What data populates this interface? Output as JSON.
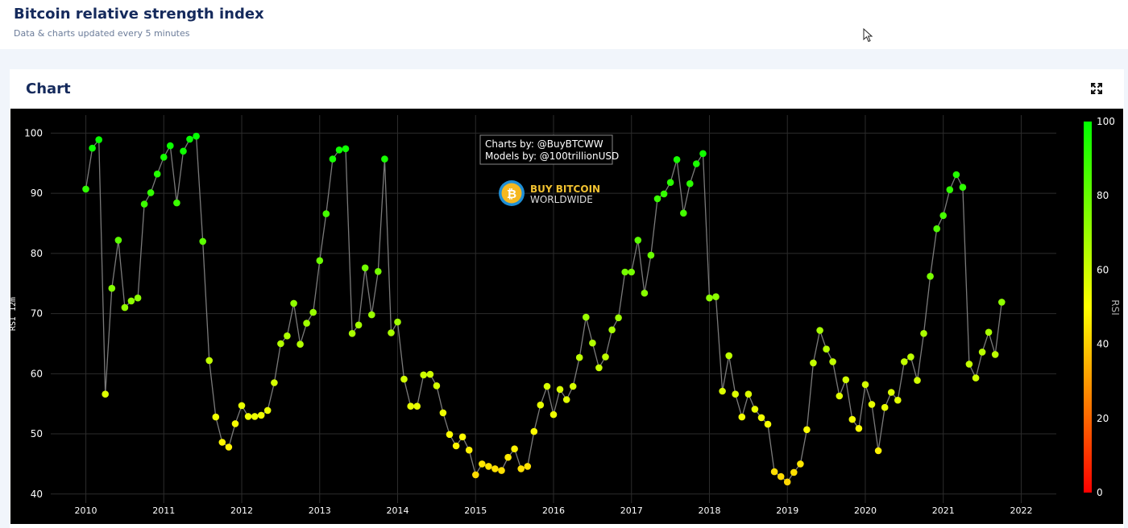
{
  "header": {
    "title": "Bitcoin relative strength index",
    "subtitle": "Data & charts updated every 5 minutes"
  },
  "card": {
    "title": "Chart",
    "expand_icon": "expand-arrows-icon"
  },
  "chart_data": {
    "type": "scatter",
    "mode": "lines+markers",
    "xlabel": "",
    "ylabel": "RSI 12m",
    "xlim": [
      2009.55,
      2022.45
    ],
    "ylim": [
      38.5,
      103
    ],
    "x_ticks": [
      "2010",
      "2011",
      "2012",
      "2013",
      "2014",
      "2015",
      "2016",
      "2017",
      "2018",
      "2019",
      "2020",
      "2021",
      "2022"
    ],
    "y_ticks": [
      40,
      50,
      60,
      70,
      80,
      90,
      100
    ],
    "grid": true,
    "line_color": "#7a7a7a",
    "colorscale": [
      "#ff0000",
      "#ffff00",
      "#00ff00"
    ],
    "colorbar": {
      "title": "RSI",
      "min": 0,
      "max": 100,
      "ticks": [
        0,
        20,
        40,
        60,
        80,
        100
      ]
    },
    "annotation_lines": [
      "Charts by: @BuyBTCWW",
      "Models by: @100trillionUSD"
    ],
    "watermark": {
      "line1": "BUY BITCOIN",
      "line2": "WORLDWIDE",
      "icon": "bitcoin-coin-icon"
    },
    "series": [
      {
        "x": [
          2010.0,
          2010.083,
          2010.167,
          2010.25,
          2010.333,
          2010.417,
          2010.5,
          2010.583,
          2010.667,
          2010.75,
          2010.833,
          2010.917,
          2011.0,
          2011.083,
          2011.167,
          2011.25,
          2011.333,
          2011.417,
          2011.5,
          2011.583,
          2011.667,
          2011.75,
          2011.833,
          2011.917,
          2012.0,
          2012.083,
          2012.167,
          2012.25,
          2012.333,
          2012.417,
          2012.5,
          2012.583,
          2012.667,
          2012.75,
          2012.833,
          2012.917,
          2013.0,
          2013.083,
          2013.167,
          2013.25,
          2013.333,
          2013.417,
          2013.5,
          2013.583,
          2013.667,
          2013.75,
          2013.833,
          2013.917,
          2014.0,
          2014.083,
          2014.167,
          2014.25,
          2014.333,
          2014.417,
          2014.5,
          2014.583,
          2014.667,
          2014.75,
          2014.833,
          2014.917,
          2015.0,
          2015.083,
          2015.167,
          2015.25,
          2015.333,
          2015.417,
          2015.5,
          2015.583,
          2015.667,
          2015.75,
          2015.833,
          2015.917,
          2016.0,
          2016.083,
          2016.167,
          2016.25,
          2016.333,
          2016.417,
          2016.5,
          2016.583,
          2016.667,
          2016.75,
          2016.833,
          2016.917,
          2017.0,
          2017.083,
          2017.167,
          2017.25,
          2017.333,
          2017.417,
          2017.5,
          2017.583,
          2017.667,
          2017.75,
          2017.833,
          2017.917,
          2018.0,
          2018.083,
          2018.167,
          2018.25,
          2018.333,
          2018.417,
          2018.5,
          2018.583,
          2018.667,
          2018.75,
          2018.833,
          2018.917,
          2019.0,
          2019.083,
          2019.167,
          2019.25,
          2019.333,
          2019.417,
          2019.5,
          2019.583,
          2019.667,
          2019.75,
          2019.833,
          2019.917,
          2020.0,
          2020.083,
          2020.167,
          2020.25,
          2020.333,
          2020.417,
          2020.5,
          2020.583,
          2020.667,
          2020.75,
          2020.833,
          2020.917,
          2021.0,
          2021.083,
          2021.167,
          2021.25,
          2021.333,
          2021.417,
          2021.5,
          2021.583,
          2021.667,
          2021.75
        ],
        "y": [
          90.7,
          97.5,
          98.9,
          56.6,
          74.2,
          82.2,
          71.0,
          72.1,
          72.6,
          88.2,
          90.1,
          93.2,
          96.0,
          97.9,
          88.4,
          97.0,
          99.0,
          99.5,
          82.0,
          62.2,
          52.8,
          48.6,
          47.8,
          51.7,
          54.7,
          52.9,
          52.9,
          53.1,
          53.9,
          58.5,
          65.0,
          66.3,
          71.7,
          64.9,
          68.4,
          70.2,
          78.8,
          86.6,
          95.7,
          97.2,
          97.4,
          66.7,
          68.1,
          77.6,
          69.8,
          77.0,
          95.7,
          66.8,
          68.6,
          59.1,
          54.6,
          54.6,
          59.8,
          59.9,
          58.0,
          53.5,
          49.9,
          48.0,
          49.5,
          47.3,
          43.2,
          45.0,
          44.6,
          44.2,
          43.9,
          46.1,
          47.5,
          44.2,
          44.6,
          50.4,
          54.8,
          57.9,
          53.2,
          57.4,
          55.7,
          57.9,
          62.7,
          69.4,
          65.1,
          61.0,
          62.8,
          67.3,
          69.3,
          76.9,
          76.9,
          82.2,
          73.4,
          79.7,
          89.1,
          89.9,
          91.8,
          95.6,
          86.7,
          91.6,
          94.9,
          96.6,
          72.6,
          72.8,
          57.1,
          63.0,
          56.6,
          52.8,
          56.6,
          54.1,
          52.7,
          51.6,
          43.7,
          42.9,
          42.0,
          43.6,
          45.0,
          50.7,
          61.8,
          67.2,
          64.1,
          62.0,
          56.3,
          59.0,
          52.4,
          50.9,
          58.2,
          54.9,
          47.2,
          54.4,
          56.9,
          55.6,
          62.0,
          62.8,
          58.9,
          66.7,
          76.2,
          84.1,
          86.3,
          90.6,
          93.1,
          91.0,
          61.6,
          59.3,
          63.6,
          66.9,
          63.2,
          71.9
        ]
      }
    ]
  }
}
